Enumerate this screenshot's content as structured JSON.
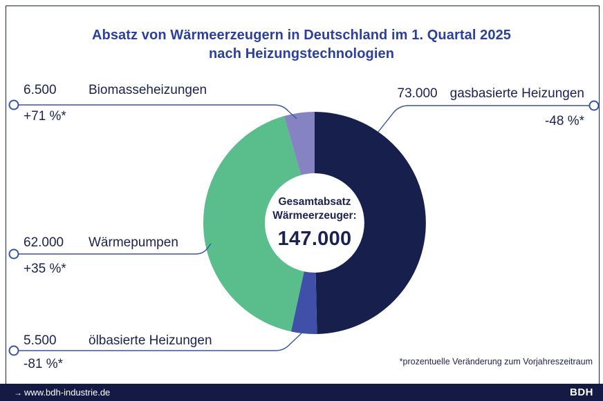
{
  "title": {
    "line1": "Absatz von Wärmeerzeugern in Deutschland im 1. Quartal 2025",
    "line2": "nach Heizungstechnologien"
  },
  "chart_data": {
    "type": "pie",
    "subtype": "donut",
    "title": "Absatz von Wärmeerzeugern in Deutschland im 1. Quartal 2025 nach Heizungstechnologien",
    "total": 147000,
    "start_angle_deg": 0,
    "direction": "clockwise",
    "center_label_line1": "Gesamtabsatz",
    "center_label_line2": "Wärmeerzeuger:",
    "center_value": "147.000",
    "slices": [
      {
        "id": "gas",
        "name": "gasbasierte Heizungen",
        "value": 73000,
        "display_value": "73.000",
        "change": "-48 %*",
        "color": "#17204D"
      },
      {
        "id": "oel",
        "name": "ölbasierte Heizungen",
        "value": 5500,
        "display_value": "5.500",
        "change": "-81 %*",
        "color": "#4050A8"
      },
      {
        "id": "waermepumpen",
        "name": "Wärmepumpen",
        "value": 62000,
        "display_value": "62.000",
        "change": "+35 %*",
        "color": "#5ABD8C"
      },
      {
        "id": "biomasse",
        "name": "Biomasseheizungen",
        "value": 6500,
        "display_value": "6.500",
        "change": "+71 %*",
        "color": "#8583C2"
      }
    ],
    "footnote": "*prozentuelle Veränderung zum Vorjahreszeitraum"
  },
  "colors": {
    "title": "#2B3F9E",
    "text": "#1B2150",
    "leader_line": "#3554A4",
    "footer_bg": "#141A43"
  },
  "footer": {
    "website": "www.bdh-industrie.de",
    "logo_text": "BDH"
  }
}
